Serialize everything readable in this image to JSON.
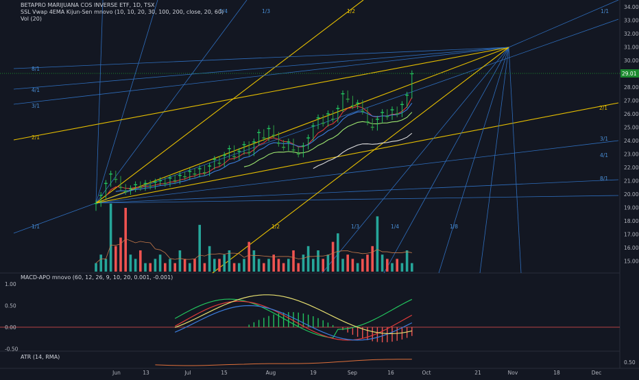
{
  "header": {
    "title": "BETAPRO MARIJUANA COS INVERSE ETF, 1D, TSX",
    "indicator1": "SSL Vwap 4EMA Kijun-Sen mnovo (10, 10, 20, 30, 100, 200, close, 20, 60)",
    "indicator2": "Vol (20)"
  },
  "macd_label": "MACD-APO mnovo (60, 12, 26, 9, 10, 20, 0.001, -0.001)",
  "atr_label": "ATR (14, RMA)",
  "last_price_badge": "29.01",
  "colors": {
    "background": "#131722",
    "up": "#26a69a",
    "down": "#ef5350",
    "green": "#22c55e",
    "fan_blue": "#2f6fbf",
    "fan_yellow": "#e8c000",
    "price_badge": "#1b8a2f"
  },
  "chart_data": [
    {
      "type": "candlestick",
      "pane": "price",
      "ylim": [
        14.5,
        34.5
      ],
      "y_ticks": [
        "34.00",
        "33.00",
        "32.00",
        "31.00",
        "30.00",
        "29.00",
        "28.00",
        "27.00",
        "26.00",
        "25.00",
        "24.00",
        "23.00",
        "22.00",
        "21.00",
        "20.00",
        "19.00",
        "18.00",
        "17.00",
        "16.00",
        "15.00"
      ],
      "x_ticks": [
        "Jun",
        "13",
        "Jul",
        "15",
        "Aug",
        "19",
        "Sep",
        "16",
        "Oct",
        "21",
        "Nov",
        "18",
        "Dec"
      ],
      "fan_labels_blue": [
        "1/4",
        "1/3",
        "1/1",
        "8/1",
        "4/1",
        "3/1",
        "3/1",
        "4/1",
        "8/1",
        "1/1",
        "1/3",
        "1/4",
        "1/8"
      ],
      "fan_labels_yellow": [
        "1/2",
        "2/1",
        "2/1",
        "1/2"
      ],
      "close": [
        19.3,
        19.9,
        20.8,
        21.5,
        21.1,
        20.5,
        20.2,
        20.4,
        20.7,
        20.5,
        20.8,
        20.6,
        20.9,
        21.0,
        20.8,
        21.2,
        21.0,
        21.4,
        21.3,
        21.7,
        21.5,
        21.9,
        21.6,
        22.1,
        22.6,
        22.3,
        22.9,
        23.4,
        22.8,
        23.2,
        23.7,
        23.1,
        23.9,
        24.6,
        24.2,
        24.9,
        24.4,
        23.8,
        23.5,
        23.9,
        23.3,
        23.0,
        23.6,
        24.2,
        25.1,
        25.7,
        25.3,
        26.0,
        25.6,
        26.4,
        27.5,
        27.1,
        26.6,
        26.8,
        26.2,
        25.4,
        25.0,
        25.6,
        26.1,
        25.8,
        26.3,
        26.0,
        26.7,
        27.4,
        29.0
      ]
    },
    {
      "type": "bar",
      "pane": "volume",
      "name": "Vol (20)",
      "values": [
        2,
        4,
        3,
        16,
        6,
        8,
        15,
        4,
        3,
        5,
        2,
        2,
        3,
        4,
        2,
        3,
        2,
        5,
        3,
        2,
        3,
        11,
        2,
        6,
        3,
        3,
        4,
        5,
        2,
        2,
        3,
        7,
        5,
        3,
        2,
        3,
        4,
        3,
        2,
        3,
        5,
        2,
        4,
        6,
        3,
        5,
        3,
        4,
        7,
        9,
        3,
        4,
        3,
        2,
        3,
        4,
        6,
        13,
        4,
        3,
        2,
        3,
        2,
        5,
        2
      ]
    },
    {
      "type": "line",
      "pane": "macd",
      "y_ticks": [
        "1.00",
        "0.50",
        "0.00",
        "-0.50"
      ],
      "ylim": [
        -0.6,
        1.25
      ]
    },
    {
      "type": "line",
      "pane": "atr",
      "y_ticks": [
        "0.50"
      ]
    }
  ]
}
